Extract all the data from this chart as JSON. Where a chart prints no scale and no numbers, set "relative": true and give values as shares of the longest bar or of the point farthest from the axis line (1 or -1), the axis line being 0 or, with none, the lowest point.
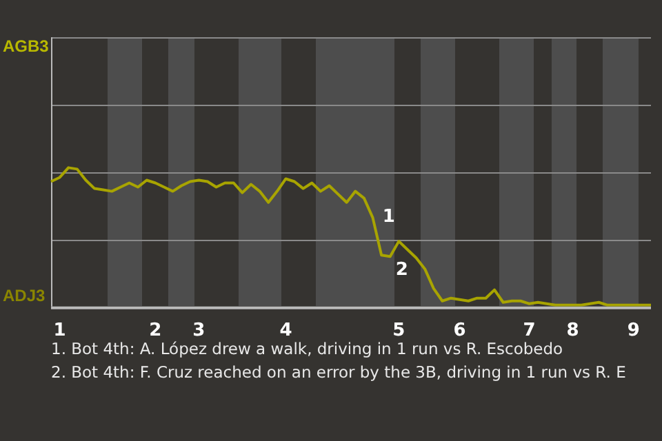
{
  "chart_data": {
    "type": "line",
    "relative": true,
    "categories": [
      null,
      "1",
      null,
      null,
      null,
      null,
      null,
      null,
      null,
      null,
      null,
      null,
      "2",
      null,
      null,
      null,
      null,
      "3",
      null,
      null,
      null,
      null,
      null,
      null,
      null,
      null,
      null,
      "4",
      null,
      null,
      null,
      null,
      null,
      null,
      null,
      null,
      null,
      null,
      null,
      null,
      "5",
      null,
      null,
      null,
      null,
      null,
      null,
      "6",
      null,
      null,
      null,
      null,
      null,
      null,
      null,
      "7",
      null,
      null,
      null,
      null,
      "8",
      null,
      null,
      null,
      null,
      null,
      null,
      "9",
      null,
      null
    ],
    "values": [
      0.9,
      0.93,
      1,
      0.99,
      0.91,
      0.85,
      0.84,
      0.83,
      0.86,
      0.89,
      0.86,
      0.91,
      0.89,
      0.86,
      0.83,
      0.87,
      0.9,
      0.91,
      0.9,
      0.86,
      0.89,
      0.89,
      0.82,
      0.88,
      0.83,
      0.75,
      0.83,
      0.92,
      0.9,
      0.85,
      0.89,
      0.83,
      0.87,
      0.81,
      0.75,
      0.83,
      0.78,
      0.64,
      0.37,
      0.36,
      0.47,
      0.41,
      0.35,
      0.27,
      0.13,
      0.04,
      0.06,
      0.05,
      0.04,
      0.06,
      0.06,
      0.12,
      0.03,
      0.04,
      0.04,
      0.02,
      0.03,
      0.02,
      0.01,
      0.01,
      0.01,
      0.01,
      0.02,
      0.03,
      0.01,
      0.01,
      0.01,
      0.01,
      0.01,
      0.01
    ],
    "color": "#a8a400",
    "ref_lines": [
      {
        "axis": "y",
        "value": 0.97,
        "color": "#8a8a8a"
      },
      {
        "axis": "y",
        "value": 0.48,
        "color": "#8a8a8a"
      }
    ],
    "marker": "none",
    "line_style": "solid",
    "annotations": [
      "AGB3",
      "ADJ3",
      "1",
      "2",
      "1. Bot 4th: A. López drew a walk, driving in 1 run vs R. Escobedo",
      "2. Bot 4th: F. Cruz reached on an error by the 3B, driving in 1 run vs R. E"
    ]
  }
}
